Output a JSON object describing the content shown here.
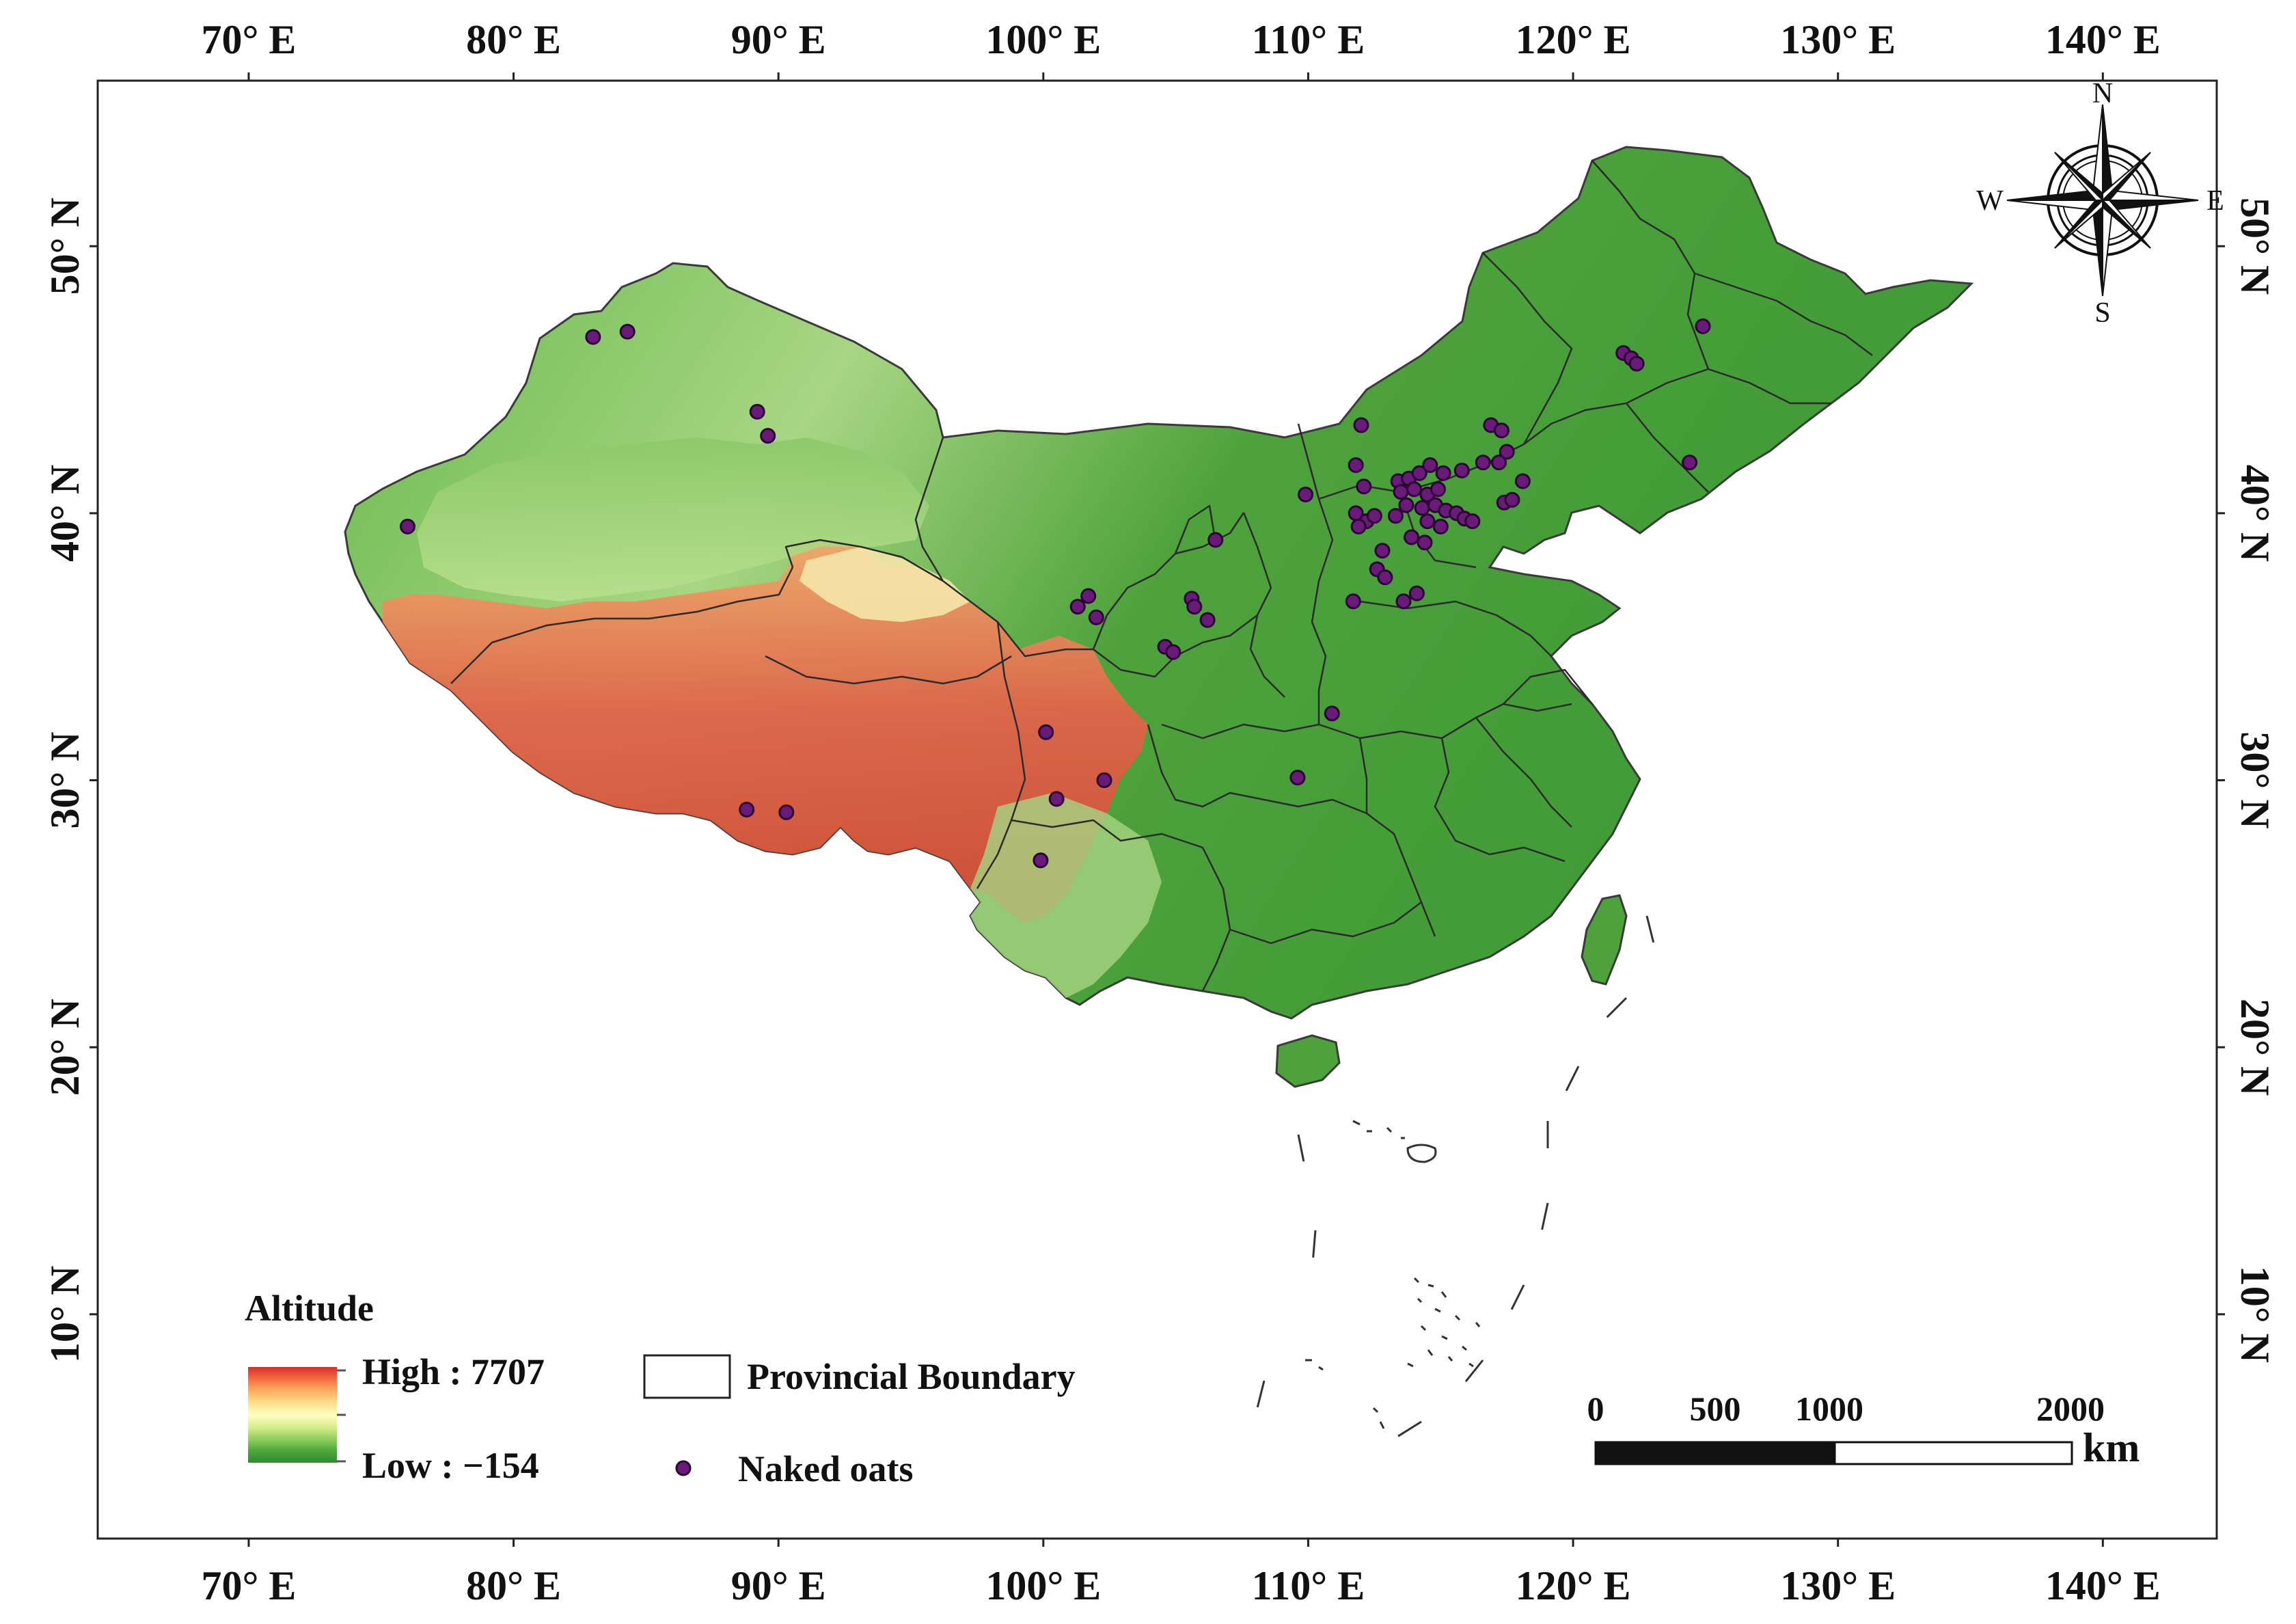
{
  "map": {
    "lon_labels": [
      "70° E",
      "80° E",
      "90° E",
      "100° E",
      "110° E",
      "120° E",
      "130° E",
      "140° E"
    ],
    "lon_values": [
      70,
      80,
      90,
      100,
      110,
      120,
      130,
      140
    ],
    "lat_labels": [
      "10° N",
      "20° N",
      "30° N",
      "40° N",
      "50° N"
    ],
    "lat_values": [
      10,
      20,
      30,
      40,
      50
    ],
    "extent": {
      "lon": [
        64.3,
        144.3
      ],
      "lat": [
        1.6,
        56.2
      ]
    }
  },
  "legend": {
    "title": "Altitude",
    "high_label": "High : 7707",
    "low_label": "Low : −154",
    "boundary_label": "Provincial Boundary",
    "points_label": "Naked oats",
    "ramp_colors": [
      "#d73027",
      "#f46d43",
      "#fdae61",
      "#fee08b",
      "#ffffbf",
      "#d9ef8b",
      "#91cf60",
      "#4fa83d",
      "#2e8b2e"
    ]
  },
  "scale_bar": {
    "labels": [
      "0",
      "500",
      "1000",
      "2000"
    ],
    "unit": "km"
  },
  "compass": {
    "n": "N",
    "s": "S",
    "e": "E",
    "w": "W"
  },
  "colors": {
    "point_fill": "#6a1b7a",
    "point_stroke": "#2a0533",
    "land_low": "#4aa33c",
    "land_mid": "#9fd17b",
    "land_high": "#e06446"
  },
  "points": [
    {
      "lon": 83.0,
      "lat": 46.6
    },
    {
      "lon": 84.3,
      "lat": 46.8
    },
    {
      "lon": 89.2,
      "lat": 43.8
    },
    {
      "lon": 89.6,
      "lat": 42.9
    },
    {
      "lon": 76.0,
      "lat": 39.5
    },
    {
      "lon": 88.8,
      "lat": 28.9
    },
    {
      "lon": 90.3,
      "lat": 28.8
    },
    {
      "lon": 101.7,
      "lat": 36.9
    },
    {
      "lon": 101.3,
      "lat": 36.5
    },
    {
      "lon": 102.0,
      "lat": 36.1
    },
    {
      "lon": 104.6,
      "lat": 35.0
    },
    {
      "lon": 104.9,
      "lat": 34.8
    },
    {
      "lon": 105.6,
      "lat": 36.8
    },
    {
      "lon": 105.7,
      "lat": 36.5
    },
    {
      "lon": 106.2,
      "lat": 36.0
    },
    {
      "lon": 106.5,
      "lat": 39.0
    },
    {
      "lon": 100.1,
      "lat": 31.8
    },
    {
      "lon": 100.5,
      "lat": 29.3
    },
    {
      "lon": 102.3,
      "lat": 30.0
    },
    {
      "lon": 99.9,
      "lat": 27.0
    },
    {
      "lon": 109.6,
      "lat": 30.1
    },
    {
      "lon": 110.9,
      "lat": 32.5
    },
    {
      "lon": 109.9,
      "lat": 40.7
    },
    {
      "lon": 112.0,
      "lat": 43.3
    },
    {
      "lon": 111.8,
      "lat": 41.8
    },
    {
      "lon": 112.1,
      "lat": 41.0
    },
    {
      "lon": 111.8,
      "lat": 40.0
    },
    {
      "lon": 112.2,
      "lat": 39.7
    },
    {
      "lon": 112.5,
      "lat": 39.9
    },
    {
      "lon": 111.9,
      "lat": 39.5
    },
    {
      "lon": 112.8,
      "lat": 38.6
    },
    {
      "lon": 112.6,
      "lat": 37.9
    },
    {
      "lon": 111.7,
      "lat": 36.7
    },
    {
      "lon": 112.9,
      "lat": 37.6
    },
    {
      "lon": 113.4,
      "lat": 41.2
    },
    {
      "lon": 113.8,
      "lat": 41.3
    },
    {
      "lon": 114.2,
      "lat": 41.5
    },
    {
      "lon": 114.6,
      "lat": 41.8
    },
    {
      "lon": 115.1,
      "lat": 41.5
    },
    {
      "lon": 115.8,
      "lat": 41.6
    },
    {
      "lon": 113.5,
      "lat": 40.8
    },
    {
      "lon": 114.0,
      "lat": 40.9
    },
    {
      "lon": 114.5,
      "lat": 40.7
    },
    {
      "lon": 114.9,
      "lat": 40.9
    },
    {
      "lon": 113.7,
      "lat": 40.3
    },
    {
      "lon": 114.3,
      "lat": 40.2
    },
    {
      "lon": 114.8,
      "lat": 40.3
    },
    {
      "lon": 115.2,
      "lat": 40.1
    },
    {
      "lon": 115.6,
      "lat": 40.0
    },
    {
      "lon": 115.9,
      "lat": 39.8
    },
    {
      "lon": 114.5,
      "lat": 39.7
    },
    {
      "lon": 115.0,
      "lat": 39.5
    },
    {
      "lon": 113.9,
      "lat": 39.1
    },
    {
      "lon": 114.4,
      "lat": 38.9
    },
    {
      "lon": 114.1,
      "lat": 37.0
    },
    {
      "lon": 113.6,
      "lat": 36.7
    },
    {
      "lon": 113.3,
      "lat": 39.9
    },
    {
      "lon": 116.6,
      "lat": 41.9
    },
    {
      "lon": 116.9,
      "lat": 43.3
    },
    {
      "lon": 117.3,
      "lat": 43.1
    },
    {
      "lon": 117.5,
      "lat": 42.3
    },
    {
      "lon": 117.2,
      "lat": 41.9
    },
    {
      "lon": 118.1,
      "lat": 41.2
    },
    {
      "lon": 117.4,
      "lat": 40.4
    },
    {
      "lon": 117.7,
      "lat": 40.5
    },
    {
      "lon": 116.2,
      "lat": 39.7
    },
    {
      "lon": 121.9,
      "lat": 46.0
    },
    {
      "lon": 122.2,
      "lat": 45.8
    },
    {
      "lon": 122.4,
      "lat": 45.6
    },
    {
      "lon": 124.9,
      "lat": 47.0
    },
    {
      "lon": 124.4,
      "lat": 41.9
    }
  ]
}
